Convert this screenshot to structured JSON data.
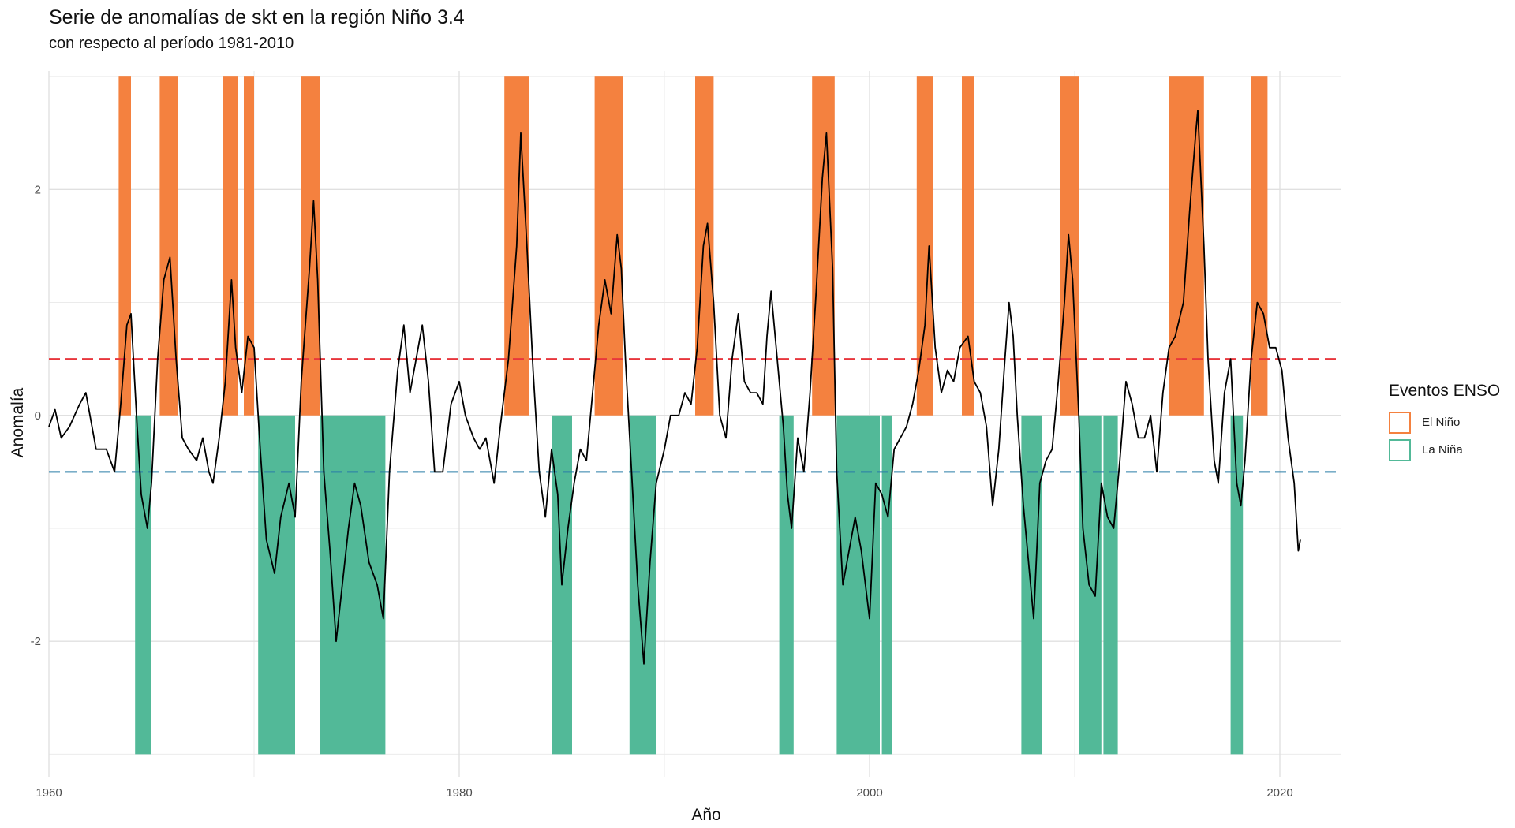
{
  "chart_data": {
    "type": "line",
    "title": "Serie de anomalías de skt en la región Niño 3.4",
    "subtitle": "con respecto al período 1981-2010",
    "xlabel": "Año",
    "ylabel": "Anomalía",
    "xlim": [
      1960,
      2024
    ],
    "ylim": [
      -3.2,
      3.05
    ],
    "x_ticks": [
      1960,
      1980,
      2000,
      2020
    ],
    "y_ticks": [
      -2,
      0,
      2
    ],
    "grid": true,
    "thresholds": [
      {
        "y": 0.5,
        "color": "#e8363c",
        "dash": true
      },
      {
        "y": -0.5,
        "color": "#2a7da8",
        "dash": true
      }
    ],
    "legend": {
      "title": "Eventos ENSO",
      "position": "right",
      "items": [
        {
          "label": "El Niño",
          "color": "#f4813f"
        },
        {
          "label": "La Niña",
          "color": "#52b998"
        }
      ]
    },
    "el_nino_events": {
      "y_range": [
        0,
        3
      ],
      "intervals": [
        [
          1963.4,
          1964.0
        ],
        [
          1965.4,
          1966.3
        ],
        [
          1968.5,
          1969.2
        ],
        [
          1969.5,
          1970.0
        ],
        [
          1972.3,
          1973.2
        ],
        [
          1982.2,
          1983.4
        ],
        [
          1986.6,
          1988.0
        ],
        [
          1991.5,
          1992.4
        ],
        [
          1997.2,
          1998.3
        ],
        [
          2002.3,
          2003.1
        ],
        [
          2004.5,
          2005.1
        ],
        [
          2009.3,
          2010.2
        ],
        [
          2014.6,
          2016.3
        ],
        [
          2018.6,
          2019.4
        ]
      ]
    },
    "la_nina_events": {
      "y_range": [
        -3,
        0
      ],
      "intervals": [
        [
          1964.2,
          1965.0
        ],
        [
          1970.2,
          1972.0
        ],
        [
          1973.2,
          1976.4
        ],
        [
          1984.5,
          1985.5
        ],
        [
          1988.3,
          1989.6
        ],
        [
          1995.6,
          1996.3
        ],
        [
          1998.4,
          2000.5
        ],
        [
          2000.6,
          2001.1
        ],
        [
          2007.4,
          2008.4
        ],
        [
          2010.2,
          2011.3
        ],
        [
          2011.4,
          2012.1
        ],
        [
          2017.6,
          2018.2
        ]
      ]
    },
    "series": [
      {
        "points": [
          [
            1960.0,
            -0.1
          ],
          [
            1960.3,
            0.05
          ],
          [
            1960.6,
            -0.2
          ],
          [
            1961.0,
            -0.1
          ],
          [
            1961.5,
            0.1
          ],
          [
            1961.8,
            0.2
          ],
          [
            1962.3,
            -0.3
          ],
          [
            1962.8,
            -0.3
          ],
          [
            1963.2,
            -0.5
          ],
          [
            1963.5,
            0.1
          ],
          [
            1963.8,
            0.8
          ],
          [
            1964.0,
            0.9
          ],
          [
            1964.3,
            -0.1
          ],
          [
            1964.5,
            -0.7
          ],
          [
            1964.8,
            -1.0
          ],
          [
            1965.0,
            -0.6
          ],
          [
            1965.3,
            0.5
          ],
          [
            1965.6,
            1.2
          ],
          [
            1965.9,
            1.4
          ],
          [
            1966.2,
            0.5
          ],
          [
            1966.5,
            -0.2
          ],
          [
            1966.8,
            -0.3
          ],
          [
            1967.2,
            -0.4
          ],
          [
            1967.5,
            -0.2
          ],
          [
            1967.8,
            -0.5
          ],
          [
            1968.0,
            -0.6
          ],
          [
            1968.3,
            -0.2
          ],
          [
            1968.6,
            0.3
          ],
          [
            1968.9,
            1.2
          ],
          [
            1969.1,
            0.6
          ],
          [
            1969.4,
            0.2
          ],
          [
            1969.7,
            0.7
          ],
          [
            1970.0,
            0.6
          ],
          [
            1970.3,
            -0.3
          ],
          [
            1970.6,
            -1.1
          ],
          [
            1971.0,
            -1.4
          ],
          [
            1971.3,
            -0.9
          ],
          [
            1971.7,
            -0.6
          ],
          [
            1972.0,
            -0.9
          ],
          [
            1972.3,
            0.3
          ],
          [
            1972.7,
            1.3
          ],
          [
            1972.9,
            1.9
          ],
          [
            1973.1,
            1.2
          ],
          [
            1973.4,
            -0.5
          ],
          [
            1973.7,
            -1.2
          ],
          [
            1974.0,
            -2.0
          ],
          [
            1974.3,
            -1.5
          ],
          [
            1974.6,
            -1.0
          ],
          [
            1974.9,
            -0.6
          ],
          [
            1975.2,
            -0.8
          ],
          [
            1975.6,
            -1.3
          ],
          [
            1976.0,
            -1.5
          ],
          [
            1976.3,
            -1.8
          ],
          [
            1976.6,
            -0.5
          ],
          [
            1977.0,
            0.4
          ],
          [
            1977.3,
            0.8
          ],
          [
            1977.6,
            0.2
          ],
          [
            1977.9,
            0.5
          ],
          [
            1978.2,
            0.8
          ],
          [
            1978.5,
            0.3
          ],
          [
            1978.8,
            -0.5
          ],
          [
            1979.2,
            -0.5
          ],
          [
            1979.6,
            0.1
          ],
          [
            1980.0,
            0.3
          ],
          [
            1980.3,
            0.0
          ],
          [
            1980.7,
            -0.2
          ],
          [
            1981.0,
            -0.3
          ],
          [
            1981.3,
            -0.2
          ],
          [
            1981.7,
            -0.6
          ],
          [
            1982.0,
            -0.1
          ],
          [
            1982.4,
            0.5
          ],
          [
            1982.8,
            1.5
          ],
          [
            1983.0,
            2.5
          ],
          [
            1983.3,
            1.5
          ],
          [
            1983.6,
            0.4
          ],
          [
            1983.9,
            -0.5
          ],
          [
            1984.2,
            -0.9
          ],
          [
            1984.5,
            -0.3
          ],
          [
            1984.8,
            -0.7
          ],
          [
            1985.0,
            -1.5
          ],
          [
            1985.3,
            -1.0
          ],
          [
            1985.6,
            -0.6
          ],
          [
            1985.9,
            -0.3
          ],
          [
            1986.2,
            -0.4
          ],
          [
            1986.5,
            0.2
          ],
          [
            1986.8,
            0.8
          ],
          [
            1987.1,
            1.2
          ],
          [
            1987.4,
            0.9
          ],
          [
            1987.7,
            1.6
          ],
          [
            1987.9,
            1.3
          ],
          [
            1988.1,
            0.5
          ],
          [
            1988.4,
            -0.5
          ],
          [
            1988.7,
            -1.5
          ],
          [
            1989.0,
            -2.2
          ],
          [
            1989.3,
            -1.3
          ],
          [
            1989.6,
            -0.6
          ],
          [
            1990.0,
            -0.3
          ],
          [
            1990.3,
            0.0
          ],
          [
            1990.7,
            0.0
          ],
          [
            1991.0,
            0.2
          ],
          [
            1991.3,
            0.1
          ],
          [
            1991.6,
            0.6
          ],
          [
            1991.9,
            1.5
          ],
          [
            1992.1,
            1.7
          ],
          [
            1992.4,
            1.0
          ],
          [
            1992.7,
            0.0
          ],
          [
            1993.0,
            -0.2
          ],
          [
            1993.3,
            0.5
          ],
          [
            1993.6,
            0.9
          ],
          [
            1993.9,
            0.3
          ],
          [
            1994.2,
            0.2
          ],
          [
            1994.5,
            0.2
          ],
          [
            1994.8,
            0.1
          ],
          [
            1995.0,
            0.7
          ],
          [
            1995.2,
            1.1
          ],
          [
            1995.5,
            0.5
          ],
          [
            1995.8,
            -0.1
          ],
          [
            1996.0,
            -0.7
          ],
          [
            1996.2,
            -1.0
          ],
          [
            1996.5,
            -0.2
          ],
          [
            1996.8,
            -0.5
          ],
          [
            1997.1,
            0.2
          ],
          [
            1997.4,
            1.1
          ],
          [
            1997.7,
            2.1
          ],
          [
            1997.9,
            2.5
          ],
          [
            1998.2,
            1.3
          ],
          [
            1998.4,
            -0.5
          ],
          [
            1998.7,
            -1.5
          ],
          [
            1999.0,
            -1.2
          ],
          [
            1999.3,
            -0.9
          ],
          [
            1999.6,
            -1.2
          ],
          [
            2000.0,
            -1.8
          ],
          [
            2000.3,
            -0.6
          ],
          [
            2000.6,
            -0.7
          ],
          [
            2000.9,
            -0.9
          ],
          [
            2001.2,
            -0.3
          ],
          [
            2001.5,
            -0.2
          ],
          [
            2001.8,
            -0.1
          ],
          [
            2002.1,
            0.1
          ],
          [
            2002.4,
            0.4
          ],
          [
            2002.7,
            0.8
          ],
          [
            2002.9,
            1.5
          ],
          [
            2003.2,
            0.6
          ],
          [
            2003.5,
            0.2
          ],
          [
            2003.8,
            0.4
          ],
          [
            2004.1,
            0.3
          ],
          [
            2004.4,
            0.6
          ],
          [
            2004.8,
            0.7
          ],
          [
            2005.1,
            0.3
          ],
          [
            2005.4,
            0.2
          ],
          [
            2005.7,
            -0.1
          ],
          [
            2006.0,
            -0.8
          ],
          [
            2006.3,
            -0.3
          ],
          [
            2006.6,
            0.5
          ],
          [
            2006.8,
            1.0
          ],
          [
            2007.0,
            0.7
          ],
          [
            2007.2,
            0.0
          ],
          [
            2007.5,
            -0.8
          ],
          [
            2007.8,
            -1.4
          ],
          [
            2008.0,
            -1.8
          ],
          [
            2008.3,
            -0.6
          ],
          [
            2008.6,
            -0.4
          ],
          [
            2008.9,
            -0.3
          ],
          [
            2009.2,
            0.3
          ],
          [
            2009.5,
            1.0
          ],
          [
            2009.7,
            1.6
          ],
          [
            2009.9,
            1.2
          ],
          [
            2010.2,
            0.0
          ],
          [
            2010.4,
            -1.0
          ],
          [
            2010.7,
            -1.5
          ],
          [
            2011.0,
            -1.6
          ],
          [
            2011.3,
            -0.6
          ],
          [
            2011.6,
            -0.9
          ],
          [
            2011.9,
            -1.0
          ],
          [
            2012.2,
            -0.4
          ],
          [
            2012.5,
            0.3
          ],
          [
            2012.8,
            0.1
          ],
          [
            2013.1,
            -0.2
          ],
          [
            2013.4,
            -0.2
          ],
          [
            2013.7,
            0.0
          ],
          [
            2014.0,
            -0.5
          ],
          [
            2014.3,
            0.2
          ],
          [
            2014.6,
            0.6
          ],
          [
            2014.9,
            0.7
          ],
          [
            2015.3,
            1.0
          ],
          [
            2015.6,
            1.8
          ],
          [
            2015.9,
            2.5
          ],
          [
            2016.0,
            2.7
          ],
          [
            2016.3,
            1.5
          ],
          [
            2016.5,
            0.5
          ],
          [
            2016.8,
            -0.4
          ],
          [
            2017.0,
            -0.6
          ],
          [
            2017.3,
            0.2
          ],
          [
            2017.6,
            0.5
          ],
          [
            2017.9,
            -0.6
          ],
          [
            2018.1,
            -0.8
          ],
          [
            2018.3,
            -0.4
          ],
          [
            2018.6,
            0.5
          ],
          [
            2018.9,
            1.0
          ],
          [
            2019.2,
            0.9
          ],
          [
            2019.5,
            0.6
          ],
          [
            2019.8,
            0.6
          ],
          [
            2020.1,
            0.4
          ],
          [
            2020.4,
            -0.2
          ],
          [
            2020.7,
            -0.6
          ],
          [
            2020.9,
            -1.2
          ],
          [
            2021.0,
            -1.1
          ]
        ]
      }
    ]
  }
}
